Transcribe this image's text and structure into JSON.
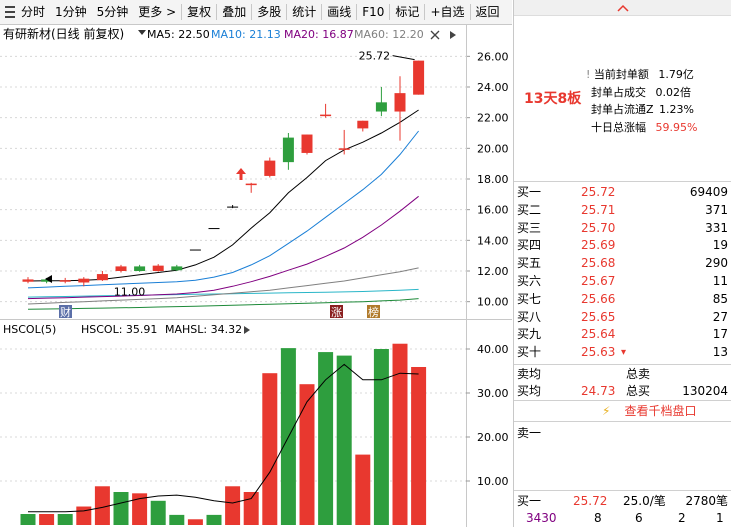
{
  "toolbar": {
    "items": [
      "分时",
      "1分钟",
      "5分钟",
      "更多 >",
      "复权",
      "叠加",
      "多股",
      "统计",
      "画线",
      "F10",
      "标记",
      "+自选",
      "返回"
    ]
  },
  "chart": {
    "title": "有研新材(日线 前复权)",
    "ma": [
      {
        "label": "MA5: 22.50",
        "color": "#000000"
      },
      {
        "label": "MA10: 21.13",
        "color": "#1a7fd6"
      },
      {
        "label": "MA20: 16.87",
        "color": "#800080"
      },
      {
        "label": "MA60: 12.20",
        "color": "#808080"
      }
    ],
    "colors": {
      "up": "#e8382f",
      "down": "#2e9e3e",
      "ma5": "#000000",
      "ma10": "#1a7fd6",
      "ma20": "#800080",
      "ma60": "#808080",
      "accent_red": "#e8382f"
    },
    "price_axis": {
      "min": 9.0,
      "max": 27.0,
      "ticks": [
        "26.00",
        "24.00",
        "22.00",
        "20.00",
        "18.00",
        "16.00",
        "14.00",
        "12.00",
        "10.00"
      ]
    },
    "high_label": "25.72",
    "low_label": "11.00",
    "markers": {
      "cai": "财",
      "zhang": "涨",
      "bang": "榜"
    }
  },
  "chart_data": [
    {
      "type": "candlestick",
      "candles": [
        {
          "o": 11.3,
          "c": 11.45,
          "h": 11.6,
          "l": 11.2
        },
        {
          "o": 11.45,
          "c": 11.3,
          "h": 11.55,
          "l": 11.2
        },
        {
          "o": 11.3,
          "c": 11.4,
          "h": 11.55,
          "l": 11.2
        },
        {
          "o": 11.25,
          "c": 11.5,
          "h": 11.6,
          "l": 11.0
        },
        {
          "o": 11.4,
          "c": 11.8,
          "h": 12.0,
          "l": 11.35
        },
        {
          "o": 12.0,
          "c": 12.3,
          "h": 12.4,
          "l": 11.9
        },
        {
          "o": 12.3,
          "c": 12.0,
          "h": 12.4,
          "l": 11.95
        },
        {
          "o": 12.0,
          "c": 12.35,
          "h": 12.45,
          "l": 11.95
        },
        {
          "o": 12.3,
          "c": 12.05,
          "h": 12.4,
          "l": 12.0
        },
        {
          "o": 13.4,
          "c": 13.4,
          "h": 13.4,
          "l": 13.4
        },
        {
          "o": 14.8,
          "c": 14.8,
          "h": 14.8,
          "l": 14.8
        },
        {
          "o": 16.2,
          "c": 16.2,
          "h": 16.3,
          "l": 16.1
        },
        {
          "o": 17.6,
          "c": 17.7,
          "h": 17.75,
          "l": 17.1
        },
        {
          "o": 18.2,
          "c": 19.2,
          "h": 19.4,
          "l": 18.1
        },
        {
          "o": 20.7,
          "c": 19.1,
          "h": 21.0,
          "l": 18.6
        },
        {
          "o": 19.7,
          "c": 20.9,
          "h": 20.9,
          "l": 19.6
        },
        {
          "o": 22.1,
          "c": 22.2,
          "h": 22.9,
          "l": 22.0
        },
        {
          "o": 19.9,
          "c": 20.0,
          "h": 21.2,
          "l": 19.6
        },
        {
          "o": 21.3,
          "c": 21.8,
          "h": 21.8,
          "l": 21.1
        },
        {
          "o": 23.0,
          "c": 22.4,
          "h": 24.0,
          "l": 22.1
        },
        {
          "o": 22.4,
          "c": 23.6,
          "h": 24.7,
          "l": 20.5
        },
        {
          "o": 23.5,
          "c": 25.72,
          "h": 25.72,
          "l": 23.5
        }
      ],
      "ma5": [
        11.35,
        11.36,
        11.37,
        11.4,
        11.45,
        11.6,
        11.75,
        11.9,
        12.05,
        12.4,
        12.9,
        13.7,
        14.8,
        15.8,
        17.1,
        18.1,
        19.2,
        19.9,
        20.4,
        21.0,
        21.7,
        22.5
      ],
      "ma10": [
        10.9,
        10.95,
        11.0,
        11.05,
        11.1,
        11.15,
        11.2,
        11.25,
        11.3,
        11.4,
        11.6,
        11.9,
        12.4,
        13.0,
        13.8,
        14.6,
        15.5,
        16.4,
        17.3,
        18.3,
        19.6,
        21.13
      ],
      "ma20": [
        10.2,
        10.23,
        10.26,
        10.3,
        10.33,
        10.36,
        10.4,
        10.45,
        10.5,
        10.6,
        10.75,
        11.0,
        11.3,
        11.65,
        12.05,
        12.45,
        12.95,
        13.5,
        14.2,
        15.0,
        15.9,
        16.87
      ],
      "ma60": [
        9.85,
        9.9,
        9.95,
        10.0,
        10.05,
        10.1,
        10.15,
        10.2,
        10.25,
        10.35,
        10.45,
        10.55,
        10.65,
        10.75,
        10.9,
        11.05,
        11.2,
        11.35,
        11.55,
        11.75,
        11.95,
        12.2
      ],
      "ma_extra_green": [
        9.5,
        9.52,
        9.54,
        9.56,
        9.58,
        9.6,
        9.62,
        9.65,
        9.68,
        9.7,
        9.73,
        9.76,
        9.8,
        9.83,
        9.86,
        9.9,
        9.93,
        9.97,
        10.0,
        10.05,
        10.1,
        10.2
      ],
      "ma_extra_cyan": [
        10.3,
        10.32,
        10.34,
        10.36,
        10.38,
        10.4,
        10.42,
        10.44,
        10.46,
        10.48,
        10.5,
        10.52,
        10.54,
        10.56,
        10.58,
        10.6,
        10.62,
        10.64,
        10.66,
        10.7,
        10.75,
        10.8
      ]
    },
    {
      "type": "bar",
      "indicator": {
        "title": "HSCOL(5)",
        "hscol": "HSCOL: 35.91",
        "mahsl": "MAHSL: 34.32"
      },
      "y_ticks": [
        "40.00",
        "30.00",
        "20.00",
        "10.00"
      ],
      "ylim": [
        0,
        45
      ],
      "bars": [
        {
          "v": 2.5,
          "up": false
        },
        {
          "v": 2.5,
          "up": true
        },
        {
          "v": 2.5,
          "up": false
        },
        {
          "v": 4.2,
          "up": true
        },
        {
          "v": 8.8,
          "up": true
        },
        {
          "v": 7.5,
          "up": false
        },
        {
          "v": 7.2,
          "up": true
        },
        {
          "v": 5.5,
          "up": false
        },
        {
          "v": 2.3,
          "up": false
        },
        {
          "v": 1.3,
          "up": true
        },
        {
          "v": 2.3,
          "up": false
        },
        {
          "v": 8.8,
          "up": true
        },
        {
          "v": 7.5,
          "up": true
        },
        {
          "v": 34.5,
          "up": true
        },
        {
          "v": 40.2,
          "up": false
        },
        {
          "v": 32.0,
          "up": true
        },
        {
          "v": 39.3,
          "up": false
        },
        {
          "v": 38.5,
          "up": false
        },
        {
          "v": 16.0,
          "up": true
        },
        {
          "v": 40.0,
          "up": false
        },
        {
          "v": 41.2,
          "up": true
        },
        {
          "v": 35.91,
          "up": true
        }
      ],
      "mahsl": [
        3.0,
        3.0,
        3.0,
        3.2,
        4.0,
        5.0,
        6.0,
        6.6,
        6.8,
        6.3,
        5.5,
        5.0,
        6.0,
        12.0,
        20.0,
        28.0,
        33.0,
        36.5,
        33.0,
        33.0,
        34.5,
        34.32
      ]
    }
  ],
  "side": {
    "badge": "13天8板",
    "info": [
      {
        "label": "当前封单额",
        "value": "1.79亿",
        "red": false
      },
      {
        "label": "封单占成交",
        "value": "0.02倍",
        "red": false
      },
      {
        "label": "封单占流通Z",
        "value": "1.23%",
        "red": false
      },
      {
        "label": "十日总涨幅",
        "value": "59.95%",
        "red": true
      }
    ],
    "orderbook": [
      {
        "label": "买一",
        "price": "25.72",
        "vol": "69409"
      },
      {
        "label": "买二",
        "price": "25.71",
        "vol": "371"
      },
      {
        "label": "买三",
        "price": "25.70",
        "vol": "331"
      },
      {
        "label": "买四",
        "price": "25.69",
        "vol": "19"
      },
      {
        "label": "买五",
        "price": "25.68",
        "vol": "290"
      },
      {
        "label": "买六",
        "price": "25.67",
        "vol": "11"
      },
      {
        "label": "买七",
        "price": "25.66",
        "vol": "85"
      },
      {
        "label": "买八",
        "price": "25.65",
        "vol": "27"
      },
      {
        "label": "买九",
        "price": "25.64",
        "vol": "17"
      },
      {
        "label": "买十",
        "price": "25.63",
        "vol": "13"
      }
    ],
    "sell_avg_label": "卖均",
    "total_sell_label": "总卖",
    "buy_avg_label": "买均",
    "buy_avg_price": "24.73",
    "total_buy_label": "总买",
    "total_buy": "130204",
    "view_depth": "查看千档盘口",
    "sell_one": "卖一",
    "trade": {
      "label": "买一",
      "price": "25.72",
      "per_trade": "25.0/笔",
      "vol": "2780笔"
    },
    "bottom_numbers": [
      "3430",
      "8",
      "6",
      "2",
      "1"
    ]
  }
}
